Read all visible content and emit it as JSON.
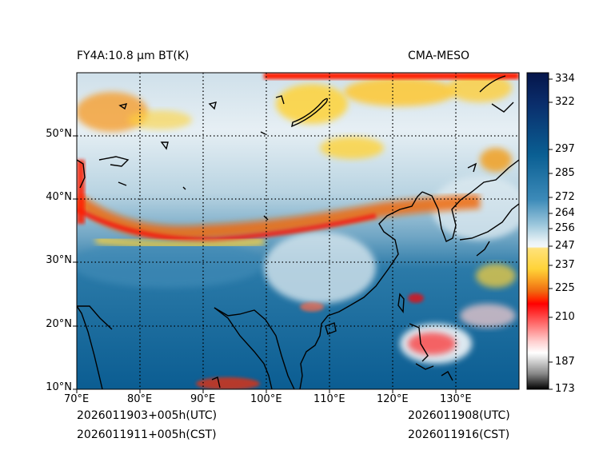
{
  "header": {
    "title_left": "FY4A:10.8 µm BT(K)",
    "title_right": "CMA-MESO"
  },
  "footer": {
    "init_utc": "2026011903+005h(UTC)",
    "init_cst": "2026011911+005h(CST)",
    "valid_utc": "2026011908(UTC)",
    "valid_cst": "2026011916(CST)"
  },
  "map": {
    "lon_range": [
      70,
      139
    ],
    "lat_range": [
      10,
      60
    ],
    "lon_ticks": [
      "70°E",
      "80°E",
      "90°E",
      "100°E",
      "110°E",
      "120°E",
      "130°E"
    ],
    "lat_ticks": [
      "10°N",
      "20°N",
      "30°N",
      "40°N",
      "50°N"
    ],
    "gridlines": "dotted"
  },
  "colorbar": {
    "ticks": [
      "334",
      "322",
      "297",
      "285",
      "272",
      "264",
      "256",
      "247",
      "237",
      "225",
      "210",
      "187",
      "173"
    ],
    "colors": {
      "navy": "#05154a",
      "blue": "#0a5f93",
      "light_blue": "#9cc7dc",
      "white": "#f3f7f9",
      "yellow": "#ffd338",
      "orange": "#f06a10",
      "red": "#ff0000",
      "pink": "#ffe2e2",
      "black": "#000000"
    }
  }
}
